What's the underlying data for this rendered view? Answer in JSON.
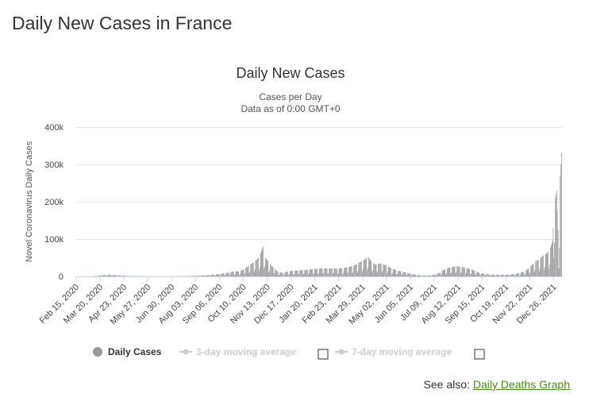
{
  "page": {
    "title": "Daily New Cases in France"
  },
  "chart_data": {
    "type": "bar",
    "title": "Daily New Cases",
    "subtitle_lines": [
      "Cases per Day",
      "Data as of 0:00 GMT+0"
    ],
    "xlabel": "",
    "ylabel": "Novel Coronavirus Daily Cases",
    "ylim": [
      0,
      400000
    ],
    "y_ticks": [
      0,
      100000,
      200000,
      300000,
      400000
    ],
    "y_tick_labels": [
      "0",
      "100k",
      "200k",
      "300k",
      "400k"
    ],
    "x_start": "2020-02-15",
    "x_end": "2022-01-06",
    "x_tick_labels": [
      "Feb 15, 2020",
      "Mar 20, 2020",
      "Apr 23, 2020",
      "May 27, 2020",
      "Jun 30, 2020",
      "Aug 03, 2020",
      "Sep 06, 2020",
      "Oct 10, 2020",
      "Nov 13, 2020",
      "Dec 17, 2020",
      "Jan 20, 2021",
      "Feb 23, 2021",
      "Mar 29, 2021",
      "May 02, 2021",
      "Jun 05, 2021",
      "Jul 09, 2021",
      "Aug 12, 2021",
      "Sep 15, 2021",
      "Oct 19, 2021",
      "Nov 22, 2021",
      "Dec 26, 2021"
    ],
    "grid": true,
    "legend_position": "bottom",
    "bar_color": "#999999",
    "series": [
      {
        "name": "Daily Cases",
        "active": true,
        "color": "#999999"
      },
      {
        "name": "3-day moving average",
        "active": false,
        "color": "#cccccc"
      },
      {
        "name": "7-day moving average",
        "active": false,
        "color": "#cccccc"
      }
    ],
    "series_points": [
      [
        "2020-02-15",
        0
      ],
      [
        "2020-03-05",
        100
      ],
      [
        "2020-03-15",
        1000
      ],
      [
        "2020-03-25",
        3500
      ],
      [
        "2020-04-01",
        4500
      ],
      [
        "2020-04-10",
        3500
      ],
      [
        "2020-04-25",
        1500
      ],
      [
        "2020-05-10",
        600
      ],
      [
        "2020-05-25",
        300
      ],
      [
        "2020-06-10",
        300
      ],
      [
        "2020-07-01",
        400
      ],
      [
        "2020-07-20",
        700
      ],
      [
        "2020-08-05",
        1500
      ],
      [
        "2020-08-20",
        3500
      ],
      [
        "2020-09-01",
        5500
      ],
      [
        "2020-09-15",
        9000
      ],
      [
        "2020-09-25",
        13000
      ],
      [
        "2020-10-05",
        14000
      ],
      [
        "2020-10-15",
        25000
      ],
      [
        "2020-10-22",
        35000
      ],
      [
        "2020-10-29",
        45000
      ],
      [
        "2020-11-02",
        55000
      ],
      [
        "2020-11-07",
        80000
      ],
      [
        "2020-11-10",
        50000
      ],
      [
        "2020-11-18",
        30000
      ],
      [
        "2020-11-28",
        12000
      ],
      [
        "2020-12-05",
        10000
      ],
      [
        "2020-12-15",
        14000
      ],
      [
        "2020-12-25",
        16000
      ],
      [
        "2021-01-05",
        17000
      ],
      [
        "2021-01-15",
        19000
      ],
      [
        "2021-01-25",
        21000
      ],
      [
        "2021-02-05",
        21000
      ],
      [
        "2021-02-20",
        21000
      ],
      [
        "2021-03-01",
        22000
      ],
      [
        "2021-03-15",
        28000
      ],
      [
        "2021-03-25",
        38000
      ],
      [
        "2021-04-01",
        45000
      ],
      [
        "2021-04-05",
        55000
      ],
      [
        "2021-04-10",
        40000
      ],
      [
        "2021-04-15",
        32000
      ],
      [
        "2021-04-25",
        35000
      ],
      [
        "2021-05-05",
        25000
      ],
      [
        "2021-05-15",
        17000
      ],
      [
        "2021-05-25",
        12000
      ],
      [
        "2021-06-05",
        7000
      ],
      [
        "2021-06-15",
        3500
      ],
      [
        "2021-06-25",
        2000
      ],
      [
        "2021-07-05",
        3000
      ],
      [
        "2021-07-15",
        8000
      ],
      [
        "2021-07-22",
        17000
      ],
      [
        "2021-08-01",
        25000
      ],
      [
        "2021-08-10",
        27000
      ],
      [
        "2021-08-20",
        24000
      ],
      [
        "2021-09-01",
        18000
      ],
      [
        "2021-09-10",
        10000
      ],
      [
        "2021-09-20",
        6000
      ],
      [
        "2021-10-01",
        4500
      ],
      [
        "2021-10-15",
        4000
      ],
      [
        "2021-10-25",
        5000
      ],
      [
        "2021-11-05",
        8000
      ],
      [
        "2021-11-15",
        14000
      ],
      [
        "2021-11-22",
        25000
      ],
      [
        "2021-11-29",
        40000
      ],
      [
        "2021-12-05",
        45000
      ],
      [
        "2021-12-10",
        55000
      ],
      [
        "2021-12-15",
        60000
      ],
      [
        "2021-12-20",
        70000
      ],
      [
        "2021-12-24",
        95000
      ],
      [
        "2021-12-27",
        200000
      ],
      [
        "2021-12-30",
        230000
      ],
      [
        "2022-01-02",
        70000
      ],
      [
        "2022-01-04",
        270000
      ],
      [
        "2022-01-06",
        330000
      ]
    ]
  },
  "legend": {
    "daily_label": "Daily Cases",
    "ma3_label": "3-day moving average",
    "ma7_label": "7-day moving average"
  },
  "footer": {
    "see_also_label": "See also:",
    "link_label": "Daily Deaths Graph"
  }
}
